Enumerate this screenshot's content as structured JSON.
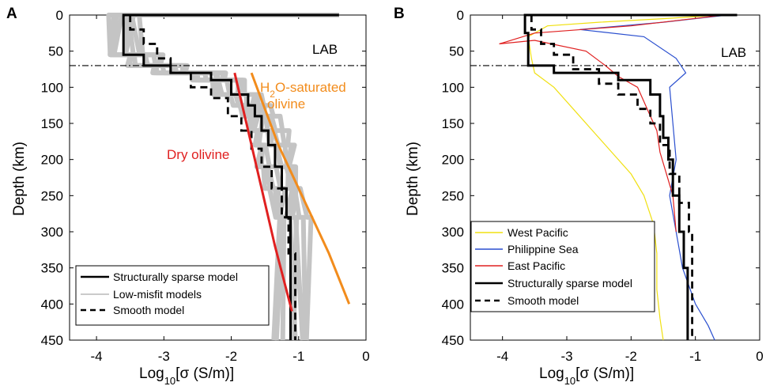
{
  "chart_data": [
    {
      "panel": "A",
      "type": "line",
      "xlabel": "Log10[σ (S/m)]",
      "ylabel": "Depth (km)",
      "xlim": [
        -4.4,
        0
      ],
      "ylim": [
        450,
        0
      ],
      "xticks": [
        "-4",
        "-3",
        "-2",
        "-1",
        "0"
      ],
      "yticks": [
        "0",
        "50",
        "100",
        "150",
        "200",
        "250",
        "300",
        "350",
        "400",
        "450"
      ],
      "lab_line": {
        "label": "LAB",
        "depth": 70
      },
      "annotations": [
        {
          "text": "H2O-saturated olivine",
          "line1_pre": "H",
          "line1_sub": "2",
          "line1_post": "O-saturated",
          "line2": "olivine",
          "color": "#f28c1c"
        },
        {
          "text": "Dry olivine",
          "color": "#e02020"
        }
      ],
      "legend": {
        "position": "bottom-left",
        "entries": [
          "Structurally sparse model",
          "Low-misfit models",
          "Smooth model"
        ]
      },
      "series": [
        {
          "name": "Structurally sparse model",
          "color": "#000000",
          "style": "solid-thick",
          "points": [
            [
              -0.4,
              0
            ],
            [
              -3.6,
              0
            ],
            [
              -3.6,
              55
            ],
            [
              -3.3,
              55
            ],
            [
              -3.3,
              70
            ],
            [
              -2.9,
              70
            ],
            [
              -2.9,
              80
            ],
            [
              -2.3,
              80
            ],
            [
              -2.3,
              90
            ],
            [
              -2.0,
              90
            ],
            [
              -2.0,
              110
            ],
            [
              -1.75,
              110
            ],
            [
              -1.75,
              125
            ],
            [
              -1.65,
              125
            ],
            [
              -1.65,
              140
            ],
            [
              -1.55,
              140
            ],
            [
              -1.55,
              160
            ],
            [
              -1.45,
              160
            ],
            [
              -1.45,
              180
            ],
            [
              -1.35,
              180
            ],
            [
              -1.35,
              210
            ],
            [
              -1.25,
              210
            ],
            [
              -1.25,
              240
            ],
            [
              -1.18,
              240
            ],
            [
              -1.18,
              280
            ],
            [
              -1.12,
              280
            ],
            [
              -1.12,
              450
            ]
          ]
        },
        {
          "name": "Smooth model",
          "color": "#000000",
          "style": "dashed",
          "points": [
            [
              -3.5,
              0
            ],
            [
              -3.5,
              20
            ],
            [
              -3.3,
              20
            ],
            [
              -3.3,
              40
            ],
            [
              -3.1,
              40
            ],
            [
              -3.1,
              60
            ],
            [
              -2.9,
              60
            ],
            [
              -2.9,
              80
            ],
            [
              -2.6,
              80
            ],
            [
              -2.6,
              100
            ],
            [
              -2.3,
              100
            ],
            [
              -2.3,
              115
            ],
            [
              -2.05,
              115
            ],
            [
              -2.05,
              140
            ],
            [
              -1.85,
              140
            ],
            [
              -1.85,
              160
            ],
            [
              -1.7,
              160
            ],
            [
              -1.7,
              185
            ],
            [
              -1.55,
              185
            ],
            [
              -1.55,
              210
            ],
            [
              -1.4,
              210
            ],
            [
              -1.4,
              240
            ],
            [
              -1.25,
              240
            ],
            [
              -1.25,
              280
            ],
            [
              -1.15,
              280
            ],
            [
              -1.15,
              330
            ],
            [
              -1.05,
              330
            ],
            [
              -1.05,
              450
            ]
          ]
        },
        {
          "name": "Dry olivine",
          "color": "#e02020",
          "style": "solid-thick",
          "points": [
            [
              -1.95,
              80
            ],
            [
              -1.75,
              160
            ],
            [
              -1.55,
              240
            ],
            [
              -1.35,
              320
            ],
            [
              -1.1,
              410
            ]
          ]
        },
        {
          "name": "H2O-saturated olivine",
          "color": "#f28c1c",
          "style": "solid-thick",
          "points": [
            [
              -1.7,
              80
            ],
            [
              -1.3,
              180
            ],
            [
              -0.9,
              260
            ],
            [
              -0.55,
              330
            ],
            [
              -0.25,
              400
            ]
          ]
        }
      ]
    },
    {
      "panel": "B",
      "type": "line",
      "xlabel": "Log10[σ (S/m)]",
      "ylabel": "Depth (km)",
      "xlim": [
        -4.5,
        0
      ],
      "ylim": [
        450,
        0
      ],
      "xticks": [
        "-4",
        "-3",
        "-2",
        "-1",
        "0"
      ],
      "yticks": [
        "0",
        "50",
        "100",
        "150",
        "200",
        "250",
        "300",
        "350",
        "400",
        "450"
      ],
      "lab_line": {
        "label": "LAB",
        "depth": 70
      },
      "legend": {
        "position": "bottom-left",
        "entries": [
          "West Pacific",
          "Philippine Sea",
          "East Pacific",
          "Structurally sparse model",
          "Smooth model"
        ]
      },
      "series": [
        {
          "name": "West Pacific",
          "color": "#f0e010",
          "style": "thin",
          "points": [
            [
              -0.6,
              0
            ],
            [
              -1.5,
              5
            ],
            [
              -2.5,
              10
            ],
            [
              -3.3,
              15
            ],
            [
              -3.6,
              30
            ],
            [
              -3.55,
              60
            ],
            [
              -3.5,
              80
            ],
            [
              -3.2,
              100
            ],
            [
              -2.9,
              130
            ],
            [
              -2.6,
              160
            ],
            [
              -2.3,
              190
            ],
            [
              -2.0,
              220
            ],
            [
              -1.8,
              250
            ],
            [
              -1.65,
              290
            ],
            [
              -1.6,
              330
            ],
            [
              -1.6,
              380
            ],
            [
              -1.55,
              420
            ],
            [
              -1.5,
              450
            ]
          ]
        },
        {
          "name": "Philippine Sea",
          "color": "#2a4fcf",
          "style": "thin",
          "points": [
            [
              -0.5,
              0
            ],
            [
              -1.5,
              10
            ],
            [
              -2.8,
              20
            ],
            [
              -1.8,
              30
            ],
            [
              -1.3,
              60
            ],
            [
              -1.15,
              80
            ],
            [
              -1.4,
              100
            ],
            [
              -1.35,
              150
            ],
            [
              -1.3,
              200
            ],
            [
              -1.4,
              250
            ],
            [
              -1.3,
              300
            ],
            [
              -1.2,
              350
            ],
            [
              -1.0,
              400
            ],
            [
              -0.8,
              430
            ],
            [
              -0.7,
              450
            ]
          ]
        },
        {
          "name": "East Pacific",
          "color": "#e02020",
          "style": "thin",
          "points": [
            [
              -0.55,
              0
            ],
            [
              -2.0,
              15
            ],
            [
              -3.5,
              25
            ],
            [
              -4.05,
              40
            ],
            [
              -3.5,
              35
            ],
            [
              -2.7,
              50
            ],
            [
              -2.4,
              70
            ],
            [
              -2.2,
              85
            ],
            [
              -1.9,
              100
            ],
            [
              -1.75,
              130
            ],
            [
              -1.6,
              160
            ],
            [
              -1.55,
              190
            ],
            [
              -1.45,
              220
            ],
            [
              -1.35,
              250
            ],
            [
              -1.3,
              300
            ]
          ]
        },
        {
          "name": "Structurally sparse model",
          "color": "#000000",
          "style": "solid-thick",
          "points": [
            [
              -0.35,
              0
            ],
            [
              -3.65,
              0
            ],
            [
              -3.65,
              25
            ],
            [
              -3.6,
              25
            ],
            [
              -3.6,
              70
            ],
            [
              -3.2,
              70
            ],
            [
              -3.2,
              80
            ],
            [
              -2.2,
              80
            ],
            [
              -2.2,
              90
            ],
            [
              -1.7,
              90
            ],
            [
              -1.7,
              110
            ],
            [
              -1.55,
              110
            ],
            [
              -1.55,
              140
            ],
            [
              -1.5,
              140
            ],
            [
              -1.5,
              170
            ],
            [
              -1.42,
              170
            ],
            [
              -1.42,
              200
            ],
            [
              -1.35,
              200
            ],
            [
              -1.35,
              250
            ],
            [
              -1.25,
              250
            ],
            [
              -1.25,
              300
            ],
            [
              -1.18,
              300
            ],
            [
              -1.18,
              350
            ],
            [
              -1.12,
              350
            ],
            [
              -1.12,
              450
            ]
          ]
        },
        {
          "name": "Smooth model",
          "color": "#000000",
          "style": "dashed",
          "points": [
            [
              -3.55,
              0
            ],
            [
              -3.55,
              20
            ],
            [
              -3.4,
              20
            ],
            [
              -3.4,
              40
            ],
            [
              -3.2,
              40
            ],
            [
              -3.2,
              55
            ],
            [
              -2.9,
              55
            ],
            [
              -2.9,
              75
            ],
            [
              -2.5,
              75
            ],
            [
              -2.5,
              95
            ],
            [
              -2.2,
              95
            ],
            [
              -2.2,
              110
            ],
            [
              -1.9,
              110
            ],
            [
              -1.9,
              130
            ],
            [
              -1.7,
              130
            ],
            [
              -1.7,
              150
            ],
            [
              -1.55,
              150
            ],
            [
              -1.55,
              180
            ],
            [
              -1.4,
              180
            ],
            [
              -1.4,
              220
            ],
            [
              -1.25,
              220
            ],
            [
              -1.25,
              260
            ],
            [
              -1.1,
              260
            ],
            [
              -1.1,
              300
            ],
            [
              -1.05,
              300
            ],
            [
              -1.05,
              450
            ]
          ]
        }
      ]
    }
  ]
}
